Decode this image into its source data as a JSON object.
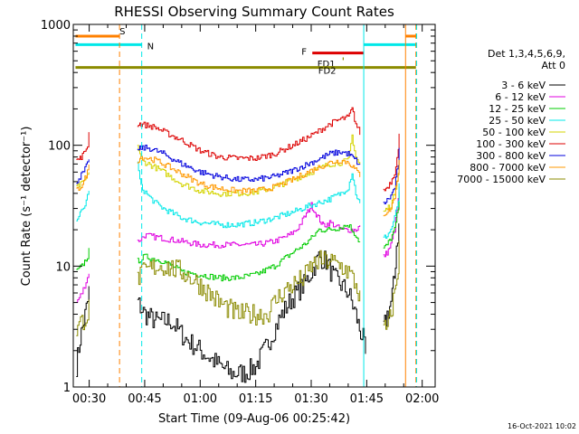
{
  "chart_data": {
    "type": "line",
    "title": "RHESSI Observing Summary Count Rates",
    "xlabel": "Start Time (09-Aug-06 00:25:42)",
    "ylabel": "Count Rate (s⁻¹ detector⁻¹)",
    "y_scale": "log",
    "ylim": [
      1,
      1000
    ],
    "xlim_minutes": [
      25.7,
      123.5
    ],
    "x_ticks": [
      {
        "label": "00:30",
        "minutes": 30
      },
      {
        "label": "00:45",
        "minutes": 45
      },
      {
        "label": "01:00",
        "minutes": 60
      },
      {
        "label": "01:15",
        "minutes": 75
      },
      {
        "label": "01:30",
        "minutes": 90
      },
      {
        "label": "01:45",
        "minutes": 105
      },
      {
        "label": "02:00",
        "minutes": 120
      }
    ],
    "y_ticks": [
      {
        "label": "1",
        "value": 1
      },
      {
        "label": "10",
        "value": 10
      },
      {
        "label": "100",
        "value": 100
      },
      {
        "label": "1000",
        "value": 1000
      }
    ],
    "legend": {
      "placement": "right",
      "header": [
        "Det 1,3,4,5,6,9,",
        "Att 0"
      ]
    },
    "series": [
      {
        "name": "3 - 6 keV",
        "color": "#000000",
        "segments": [
          {
            "x": [
              26.5,
              27.5,
              28.5,
              29.5,
              30.3
            ],
            "y": [
              1.5,
              2.5,
              3.5,
              5,
              8
            ]
          },
          {
            "x": [
              43,
              45,
              48,
              52,
              56,
              60,
              64,
              68,
              72,
              75,
              78,
              80,
              82,
              84,
              86,
              88,
              90,
              92,
              94,
              96,
              98,
              100,
              102,
              103,
              104,
              105
            ],
            "y": [
              5,
              4,
              3.5,
              3.5,
              2.5,
              2,
              1.6,
              1.3,
              1.3,
              1.5,
              2.2,
              3,
              4,
              5,
              6,
              7,
              9,
              12,
              11,
              8,
              7,
              6,
              4,
              3,
              2.5,
              1.5
            ]
          },
          {
            "x": [
              109.5,
              110.5,
              111.5,
              112.5,
              113,
              114
            ],
            "y": [
              3,
              4,
              5,
              8,
              15,
              25
            ]
          }
        ]
      },
      {
        "name": "6 - 12 keV",
        "color": "#e000e0",
        "segments": [
          {
            "x": [
              26.5,
              28,
              29.5,
              30.3
            ],
            "y": [
              5,
              6,
              8,
              10
            ]
          },
          {
            "x": [
              43,
              45,
              50,
              55,
              60,
              65,
              70,
              75,
              80,
              84,
              86,
              88,
              89,
              90,
              91,
              92,
              93,
              94,
              95,
              96,
              98,
              100,
              102,
              103.5
            ],
            "y": [
              16,
              18,
              17,
              16,
              15,
              15,
              15,
              15,
              16,
              18,
              20,
              25,
              28,
              32,
              28,
              25,
              22,
              22,
              23,
              22,
              20,
              20,
              20,
              22
            ]
          },
          {
            "x": [
              109.5,
              110.5,
              111.5,
              112.5,
              113.5,
              114
            ],
            "y": [
              12,
              13,
              15,
              20,
              35,
              60
            ]
          }
        ]
      },
      {
        "name": "12 - 25 keV",
        "color": "#00cc00",
        "segments": [
          {
            "x": [
              26.5,
              28,
              29.5,
              30.3
            ],
            "y": [
              9,
              10,
              12,
              15
            ]
          },
          {
            "x": [
              43,
              45,
              50,
              55,
              60,
              65,
              70,
              75,
              80,
              85,
              88,
              90,
              92,
              95,
              98,
              100,
              102,
              103.5
            ],
            "y": [
              11,
              12,
              11,
              9,
              8.5,
              8,
              8,
              8.5,
              10,
              13,
              15,
              17,
              20,
              20,
              21,
              22,
              18,
              15
            ]
          },
          {
            "x": [
              109.5,
              110.5,
              111.5,
              112.5,
              113.5,
              114
            ],
            "y": [
              14,
              15,
              17,
              20,
              30,
              50
            ]
          }
        ]
      },
      {
        "name": "25 - 50 keV",
        "color": "#00e8e8",
        "segments": [
          {
            "x": [
              26.5,
              27.5,
              28.5,
              29.5,
              30.3
            ],
            "y": [
              25,
              27,
              30,
              38,
              50
            ]
          },
          {
            "x": [
              43,
              44,
              46,
              48,
              50,
              55,
              60,
              65,
              70,
              75,
              80,
              85,
              90,
              95,
              98,
              100,
              101,
              102,
              103.5
            ],
            "y": [
              70,
              45,
              38,
              33,
              30,
              25,
              23,
              22,
              22,
              23,
              25,
              28,
              32,
              36,
              40,
              45,
              60,
              40,
              30
            ]
          },
          {
            "x": [
              109.5,
              110.5,
              111.5,
              112.5,
              113.5,
              114
            ],
            "y": [
              17,
              18,
              20,
              25,
              35,
              60
            ]
          }
        ]
      },
      {
        "name": "50 - 100 keV",
        "color": "#d4d400",
        "segments": [
          {
            "x": [
              26.5,
              28,
              29.5,
              30.3
            ],
            "y": [
              45,
              48,
              55,
              70
            ]
          },
          {
            "x": [
              43,
              44,
              46,
              48,
              50,
              55,
              60,
              65,
              70,
              75,
              80,
              85,
              90,
              95,
              98,
              100,
              101,
              102,
              103.5
            ],
            "y": [
              100,
              75,
              70,
              65,
              60,
              48,
              42,
              40,
              40,
              41,
              45,
              52,
              60,
              70,
              72,
              75,
              120,
              80,
              65
            ]
          },
          {
            "x": [
              109.5,
              110.5,
              111.5,
              112.5,
              113.5,
              114
            ],
            "y": [
              28,
              30,
              32,
              40,
              60,
              100
            ]
          }
        ]
      },
      {
        "name": "100 - 300 keV",
        "color": "#dd0000",
        "segments": [
          {
            "x": [
              26.5,
              27.5,
              28.5,
              29.5,
              30.3
            ],
            "y": [
              75,
              78,
              85,
              100,
              160
            ]
          },
          {
            "x": [
              43,
              44,
              46,
              48,
              50,
              55,
              60,
              65,
              70,
              75,
              80,
              85,
              90,
              95,
              98,
              100,
              101,
              102,
              103.5
            ],
            "y": [
              150,
              150,
              145,
              140,
              130,
              110,
              90,
              80,
              78,
              78,
              85,
              100,
              120,
              150,
              165,
              170,
              200,
              150,
              120
            ]
          },
          {
            "x": [
              109.5,
              110.5,
              111.5,
              112.5,
              113.5,
              114
            ],
            "y": [
              42,
              45,
              50,
              60,
              90,
              160
            ]
          }
        ]
      },
      {
        "name": "300 - 800 keV",
        "color": "#0000dd",
        "segments": [
          {
            "x": [
              26.5,
              27.5,
              28.5,
              29.5,
              30.3
            ],
            "y": [
              50,
              55,
              60,
              70,
              90
            ]
          },
          {
            "x": [
              43,
              44,
              46,
              48,
              50,
              55,
              60,
              65,
              70,
              75,
              80,
              85,
              90,
              95,
              98,
              100,
              101,
              102,
              103.5
            ],
            "y": [
              90,
              95,
              95,
              90,
              85,
              70,
              60,
              55,
              52,
              52,
              55,
              62,
              72,
              85,
              88,
              85,
              80,
              75,
              65
            ]
          },
          {
            "x": [
              109.5,
              110.5,
              111.5,
              112.5,
              113.5,
              114
            ],
            "y": [
              33,
              35,
              38,
              45,
              70,
              120
            ]
          }
        ]
      },
      {
        "name": "800 - 7000 keV",
        "color": "#ff9900",
        "segments": [
          {
            "x": [
              26.5,
              27.5,
              28.5,
              29.5,
              30.3
            ],
            "y": [
              42,
              45,
              50,
              60,
              80
            ]
          },
          {
            "x": [
              43,
              44,
              46,
              48,
              50,
              55,
              60,
              65,
              70,
              75,
              80,
              85,
              90,
              95,
              98,
              100,
              101,
              102,
              103.5
            ],
            "y": [
              75,
              80,
              78,
              75,
              70,
              58,
              48,
              44,
              42,
              42,
              45,
              52,
              62,
              72,
              75,
              72,
              68,
              62,
              55
            ]
          },
          {
            "x": [
              109.5,
              110.5,
              111.5,
              112.5,
              113.5,
              114
            ],
            "y": [
              27,
              28,
              30,
              38,
              60,
              100
            ]
          }
        ]
      },
      {
        "name": "7000 - 15000 keV",
        "color": "#8b8b00",
        "segments": [
          {
            "x": [
              26.5,
              28,
              29.5,
              30.3
            ],
            "y": [
              3,
              3.5,
              4,
              5
            ]
          },
          {
            "x": [
              43,
              45,
              48,
              50,
              55,
              60,
              65,
              70,
              75,
              78,
              80,
              82,
              85,
              88,
              90,
              92,
              95,
              98,
              100,
              102,
              103.5
            ],
            "y": [
              8,
              9,
              10,
              10,
              9,
              7,
              5,
              4,
              4,
              4,
              5,
              6,
              7,
              8,
              10,
              11,
              11,
              10,
              9,
              7,
              5
            ]
          },
          {
            "x": [
              109.5,
              110.5,
              111.5,
              112.5,
              113.5,
              114
            ],
            "y": [
              3,
              3,
              4,
              6,
              10,
              20
            ]
          }
        ]
      }
    ],
    "flag_bars": [
      {
        "label": "S",
        "color": "#ff8000",
        "y": 800,
        "segments": [
          [
            26.3,
            38.2
          ],
          [
            115.5,
            118.3
          ]
        ]
      },
      {
        "label": "N",
        "color": "#00e8e8",
        "y": 680,
        "segments": [
          [
            26.3,
            44.2
          ],
          [
            104.2,
            118.3
          ]
        ]
      },
      {
        "label": "F",
        "color": "#dd0000",
        "y": 580,
        "segments": [
          [
            90.3,
            104.2
          ]
        ]
      },
      {
        "label": "FD1",
        "color": "#8b8b00",
        "y": 520,
        "segments": [
          [
            98.5,
            98.8
          ]
        ]
      },
      {
        "label": "FD2",
        "color": "#8b8b00",
        "y": 440,
        "segments": [
          [
            26.3,
            118.3
          ]
        ]
      }
    ],
    "vertical_markers": [
      {
        "color": "#ff8000",
        "style": "dashed",
        "x": 38.2
      },
      {
        "color": "#00e8e8",
        "style": "dashed",
        "x": 44.2
      },
      {
        "color": "#00e8e8",
        "style": "solid",
        "x": 104.2
      },
      {
        "color": "#ff8000",
        "style": "solid",
        "x": 115.5
      },
      {
        "color": "#ff8000",
        "style": "dashed",
        "x": 118.3
      },
      {
        "color": "#00e8e8",
        "style": "dashed",
        "x": 118.5
      }
    ],
    "gaps_minutes": [
      [
        30.3,
        42.9
      ],
      [
        103.6,
        109.4
      ]
    ]
  },
  "footer": {
    "date_stamp": "16-Oct-2021 10:02"
  }
}
